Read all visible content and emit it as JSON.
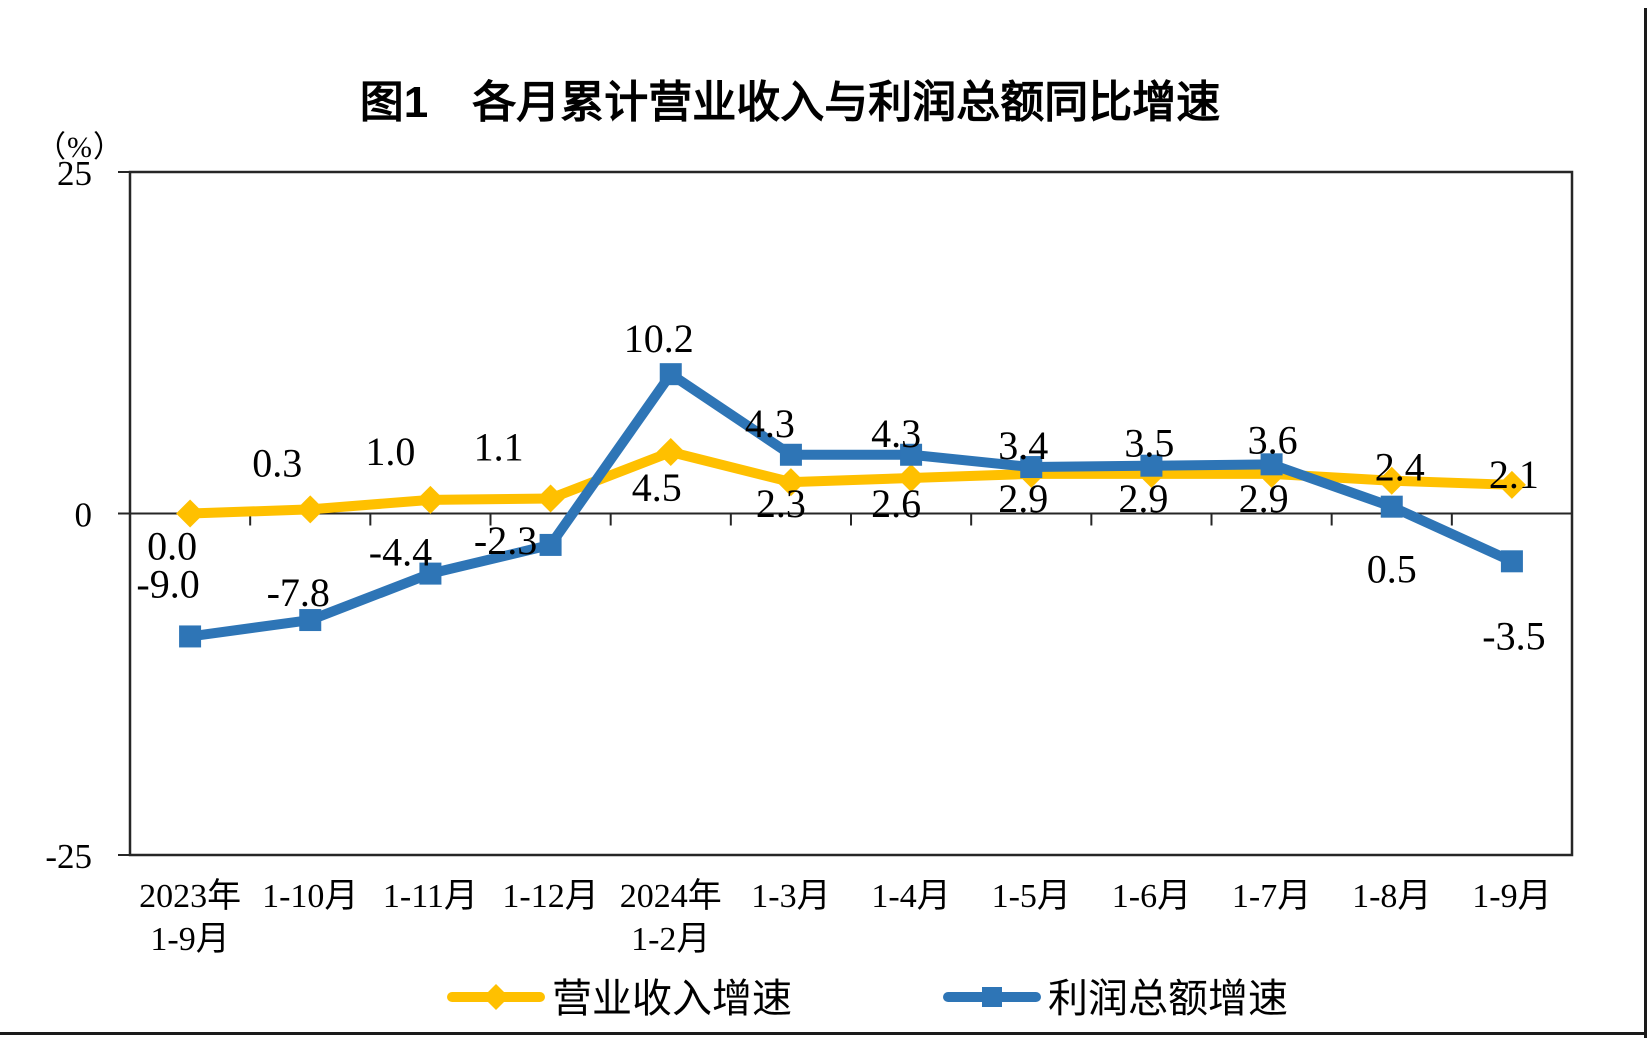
{
  "chart_data": {
    "type": "line",
    "title": "图1　各月累计营业收入与利润总额同比增速",
    "y_unit_label": "（%）",
    "ylim": [
      -25,
      25
    ],
    "yticks": [
      {
        "value": 25,
        "label": "25"
      },
      {
        "value": 0,
        "label": "0"
      },
      {
        "value": -25,
        "label": "-25"
      }
    ],
    "grid": false,
    "legend_position": "bottom",
    "categories": [
      "2023年\n1-9月",
      "1-10月",
      "1-11月",
      "1-12月",
      "2024年\n1-2月",
      "1-3月",
      "1-4月",
      "1-5月",
      "1-6月",
      "1-7月",
      "1-8月",
      "1-9月"
    ],
    "series": [
      {
        "name": "营业收入增速",
        "color": "#FFC000",
        "marker": "diamond",
        "values": [
          0.0,
          0.3,
          1.0,
          1.1,
          4.5,
          2.3,
          2.6,
          2.9,
          2.9,
          2.9,
          2.4,
          2.1
        ],
        "data_label_offsets": [
          [
            -18,
            46
          ],
          [
            -33,
            -33
          ],
          [
            -40,
            -35
          ],
          [
            -52,
            -38
          ],
          [
            -14,
            49
          ],
          [
            -10,
            35
          ],
          [
            -15,
            39
          ],
          [
            -8,
            38
          ],
          [
            -8,
            38
          ],
          [
            -8,
            38
          ],
          [
            8,
            0
          ],
          [
            2,
            3
          ]
        ]
      },
      {
        "name": "利润总额增速",
        "color": "#2E75B6",
        "marker": "square",
        "values": [
          -9.0,
          -7.8,
          -4.4,
          -2.3,
          10.2,
          4.3,
          4.3,
          3.4,
          3.5,
          3.6,
          0.5,
          -3.5
        ],
        "data_label_offsets": [
          [
            -22,
            -39
          ],
          [
            -12,
            -14
          ],
          [
            -30,
            -8
          ],
          [
            -45,
            9
          ],
          [
            -12,
            -22
          ],
          [
            -21,
            -18
          ],
          [
            -15,
            -8
          ],
          [
            -8,
            -8
          ],
          [
            -2,
            -9
          ],
          [
            1,
            -11
          ],
          [
            0,
            76
          ],
          [
            2,
            88
          ]
        ]
      }
    ]
  }
}
